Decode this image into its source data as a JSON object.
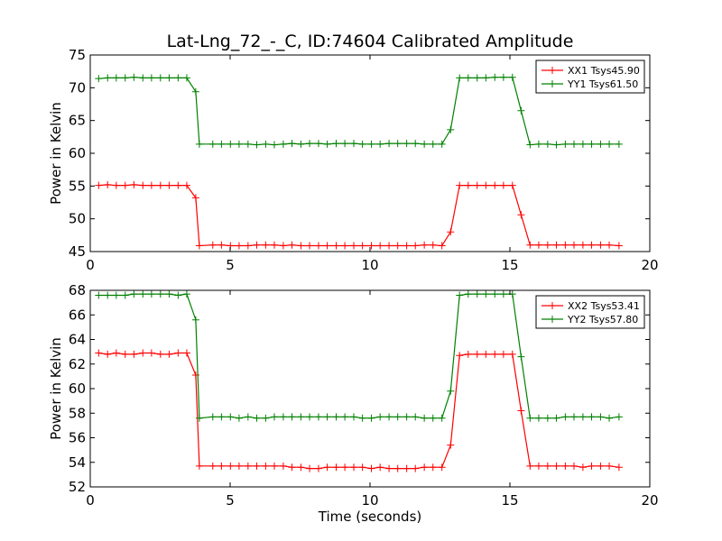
{
  "chart_data": {
    "type": "line",
    "title": "Lat-Lng_72_-_C, ID:74604 Calibrated Amplitude",
    "x": [
      0.3,
      0.62,
      0.93,
      1.25,
      1.56,
      1.88,
      2.19,
      2.51,
      2.82,
      3.14,
      3.45,
      3.77,
      3.9,
      4.38,
      4.69,
      5.01,
      5.32,
      5.64,
      5.95,
      6.27,
      6.58,
      6.9,
      7.21,
      7.53,
      7.84,
      8.16,
      8.47,
      8.79,
      9.1,
      9.42,
      9.73,
      10.05,
      10.36,
      10.68,
      10.99,
      11.31,
      11.62,
      11.94,
      12.25,
      12.57,
      12.88,
      13.2,
      13.51,
      13.83,
      14.14,
      14.46,
      14.77,
      15.09,
      15.4,
      15.72,
      16.03,
      16.35,
      16.66,
      16.98,
      17.29,
      17.61,
      17.92,
      18.24,
      18.55,
      18.9
    ],
    "xlim": [
      0,
      20
    ],
    "xlabel": "Time (seconds)",
    "panels": [
      {
        "ylabel": "Power in Kelvin",
        "ylim": [
          45,
          75
        ],
        "yticks": [
          45,
          50,
          55,
          60,
          65,
          70,
          75
        ],
        "xticks": [
          0,
          5,
          10,
          15,
          20
        ],
        "legend_position": "top-right",
        "series": [
          {
            "name": "XX1 Tsys45.90",
            "color": "#ff0000",
            "values": [
              55.1,
              55.2,
              55.1,
              55.1,
              55.2,
              55.1,
              55.1,
              55.1,
              55.1,
              55.1,
              55.1,
              53.2,
              45.9,
              46.0,
              46.0,
              45.9,
              45.9,
              45.9,
              46.0,
              46.0,
              46.0,
              45.9,
              46.0,
              45.9,
              45.9,
              45.9,
              45.9,
              45.9,
              45.9,
              45.9,
              45.9,
              45.9,
              45.9,
              45.9,
              45.9,
              45.9,
              45.9,
              46.0,
              46.0,
              45.9,
              48.0,
              55.1,
              55.1,
              55.1,
              55.1,
              55.1,
              55.1,
              55.1,
              50.6,
              46.0,
              46.0,
              46.0,
              46.0,
              46.0,
              46.0,
              46.0,
              46.0,
              46.0,
              46.0,
              45.9
            ]
          },
          {
            "name": "YY1 Tsys61.50",
            "color": "#008000",
            "values": [
              71.4,
              71.5,
              71.5,
              71.5,
              71.6,
              71.5,
              71.5,
              71.5,
              71.5,
              71.5,
              71.5,
              69.4,
              61.4,
              61.4,
              61.4,
              61.4,
              61.4,
              61.4,
              61.3,
              61.4,
              61.3,
              61.4,
              61.5,
              61.4,
              61.5,
              61.5,
              61.4,
              61.5,
              61.5,
              61.5,
              61.4,
              61.4,
              61.4,
              61.5,
              61.5,
              61.5,
              61.5,
              61.4,
              61.4,
              61.4,
              63.6,
              71.5,
              71.5,
              71.5,
              71.5,
              71.6,
              71.6,
              71.6,
              66.5,
              61.3,
              61.4,
              61.4,
              61.3,
              61.4,
              61.4,
              61.4,
              61.4,
              61.4,
              61.4,
              61.4
            ]
          }
        ]
      },
      {
        "ylabel": "Power in Kelvin",
        "ylim": [
          52,
          68
        ],
        "yticks": [
          52,
          54,
          56,
          58,
          60,
          62,
          64,
          66,
          68
        ],
        "xticks": [
          0,
          5,
          10,
          15,
          20
        ],
        "legend_position": "top-right",
        "series": [
          {
            "name": "XX2 Tsys53.41",
            "color": "#ff0000",
            "values": [
              62.9,
              62.8,
              62.9,
              62.8,
              62.8,
              62.9,
              62.9,
              62.8,
              62.8,
              62.9,
              62.9,
              61.1,
              53.7,
              53.7,
              53.7,
              53.7,
              53.7,
              53.7,
              53.7,
              53.7,
              53.7,
              53.7,
              53.6,
              53.6,
              53.5,
              53.5,
              53.6,
              53.6,
              53.6,
              53.6,
              53.6,
              53.5,
              53.6,
              53.5,
              53.5,
              53.5,
              53.5,
              53.6,
              53.6,
              53.6,
              55.4,
              62.7,
              62.8,
              62.8,
              62.8,
              62.8,
              62.8,
              62.8,
              58.2,
              53.7,
              53.7,
              53.7,
              53.7,
              53.7,
              53.7,
              53.6,
              53.7,
              53.7,
              53.7,
              53.6
            ]
          },
          {
            "name": "YY2 Tsys57.80",
            "color": "#008000",
            "values": [
              67.6,
              67.6,
              67.6,
              67.6,
              67.7,
              67.7,
              67.7,
              67.7,
              67.7,
              67.6,
              67.7,
              65.6,
              57.6,
              57.7,
              57.7,
              57.7,
              57.6,
              57.7,
              57.6,
              57.6,
              57.7,
              57.7,
              57.7,
              57.7,
              57.7,
              57.7,
              57.7,
              57.7,
              57.7,
              57.7,
              57.6,
              57.6,
              57.7,
              57.7,
              57.7,
              57.7,
              57.7,
              57.6,
              57.6,
              57.6,
              59.8,
              67.6,
              67.7,
              67.7,
              67.7,
              67.7,
              67.7,
              67.7,
              62.6,
              57.6,
              57.6,
              57.6,
              57.6,
              57.7,
              57.7,
              57.7,
              57.7,
              57.7,
              57.6,
              57.7
            ]
          }
        ]
      }
    ]
  }
}
